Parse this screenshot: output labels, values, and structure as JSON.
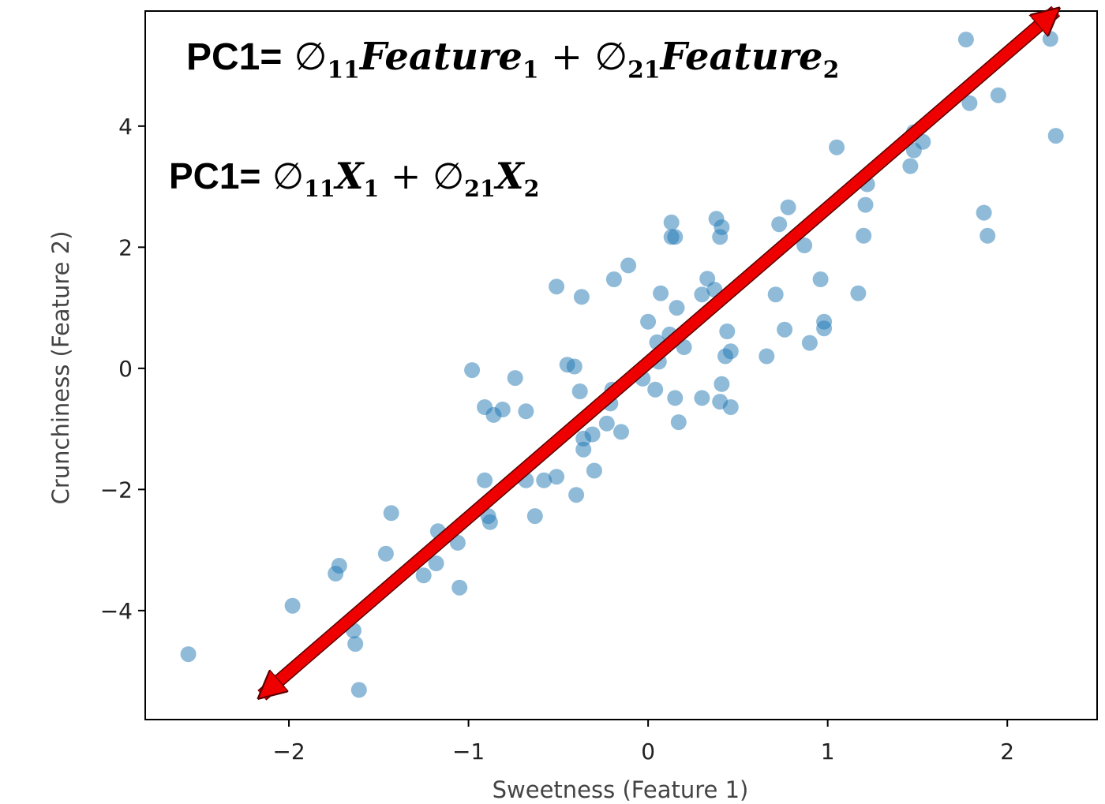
{
  "equations": {
    "eq1": {
      "lhs": "PC1=",
      "coef1_sym": "∅",
      "coef1_sub": "11",
      "var1": "Feature",
      "var1_sub": "1",
      "plus": "+",
      "coef2_sym": "∅",
      "coef2_sub": "21",
      "var2": "Feature",
      "var2_sub": "2"
    },
    "eq2": {
      "lhs": "PC1=",
      "coef1_sym": "∅",
      "coef1_sub": "11",
      "var1": "X",
      "var1_sub": "1",
      "plus": "+",
      "coef2_sym": "∅",
      "coef2_sub": "21",
      "var2": "X",
      "var2_sub": "2"
    }
  },
  "chart_data": {
    "type": "scatter",
    "xlabel": "Sweetness (Feature 1)",
    "ylabel": "Crunchiness (Feature 2)",
    "xlim": [
      -2.8,
      2.5
    ],
    "ylim": [
      -5.8,
      5.9
    ],
    "xticks": [
      -2,
      -1,
      0,
      1,
      2
    ],
    "yticks": [
      -4,
      -2,
      0,
      2,
      4
    ],
    "xtick_labels": [
      "−2",
      "−1",
      "0",
      "1",
      "2"
    ],
    "ytick_labels": [
      "−4",
      "−2",
      "0",
      "2",
      "4"
    ],
    "grid": false,
    "marker_color": "#1f77b4",
    "arrow_color": "#ee0000",
    "arrow": {
      "from": [
        -2.15,
        -5.4
      ],
      "to": [
        2.27,
        5.9
      ]
    },
    "points": [
      [
        -2.56,
        -4.72
      ],
      [
        -1.98,
        -3.92
      ],
      [
        -1.61,
        -5.31
      ],
      [
        -1.63,
        -4.55
      ],
      [
        -1.64,
        -4.33
      ],
      [
        -1.74,
        -3.39
      ],
      [
        -1.72,
        -3.26
      ],
      [
        -1.46,
        -3.06
      ],
      [
        -1.43,
        -2.39
      ],
      [
        -1.25,
        -3.42
      ],
      [
        -1.18,
        -3.22
      ],
      [
        -1.17,
        -2.69
      ],
      [
        -1.06,
        -2.88
      ],
      [
        -1.05,
        -3.62
      ],
      [
        -0.98,
        -0.03
      ],
      [
        -0.91,
        -0.64
      ],
      [
        -0.86,
        -0.77
      ],
      [
        -0.81,
        -0.68
      ],
      [
        -0.91,
        -1.85
      ],
      [
        -0.89,
        -2.44
      ],
      [
        -0.88,
        -2.54
      ],
      [
        -0.74,
        -0.16
      ],
      [
        -0.68,
        -0.71
      ],
      [
        -0.68,
        -1.85
      ],
      [
        -0.63,
        -2.44
      ],
      [
        -0.58,
        -1.85
      ],
      [
        -0.51,
        -1.79
      ],
      [
        -0.51,
        1.35
      ],
      [
        -0.45,
        0.06
      ],
      [
        -0.41,
        0.03
      ],
      [
        -0.38,
        -0.38
      ],
      [
        -0.4,
        -2.09
      ],
      [
        -0.37,
        1.18
      ],
      [
        -0.36,
        -1.16
      ],
      [
        -0.36,
        -1.34
      ],
      [
        -0.31,
        -1.09
      ],
      [
        -0.3,
        -1.69
      ],
      [
        -0.23,
        -0.91
      ],
      [
        -0.21,
        -0.58
      ],
      [
        -0.2,
        -0.35
      ],
      [
        -0.19,
        1.47
      ],
      [
        -0.15,
        -1.05
      ],
      [
        -0.11,
        1.7
      ],
      [
        -0.03,
        -0.17
      ],
      [
        0.0,
        0.77
      ],
      [
        0.04,
        -0.35
      ],
      [
        0.05,
        0.43
      ],
      [
        0.06,
        0.11
      ],
      [
        0.07,
        1.24
      ],
      [
        0.12,
        0.56
      ],
      [
        0.13,
        2.17
      ],
      [
        0.13,
        2.41
      ],
      [
        0.15,
        2.17
      ],
      [
        0.15,
        -0.49
      ],
      [
        0.16,
        1.0
      ],
      [
        0.17,
        -0.89
      ],
      [
        0.2,
        0.35
      ],
      [
        0.3,
        -0.49
      ],
      [
        0.3,
        1.22
      ],
      [
        0.33,
        1.48
      ],
      [
        0.37,
        1.3
      ],
      [
        0.38,
        2.47
      ],
      [
        0.4,
        2.17
      ],
      [
        0.41,
        2.33
      ],
      [
        0.4,
        -0.55
      ],
      [
        0.41,
        -0.26
      ],
      [
        0.43,
        0.2
      ],
      [
        0.44,
        0.61
      ],
      [
        0.46,
        0.28
      ],
      [
        0.46,
        -0.64
      ],
      [
        0.66,
        0.2
      ],
      [
        0.71,
        1.22
      ],
      [
        0.73,
        2.38
      ],
      [
        0.76,
        0.64
      ],
      [
        0.78,
        2.66
      ],
      [
        0.87,
        2.03
      ],
      [
        0.9,
        0.42
      ],
      [
        0.96,
        1.47
      ],
      [
        0.98,
        0.66
      ],
      [
        0.98,
        0.77
      ],
      [
        1.05,
        3.65
      ],
      [
        1.17,
        1.24
      ],
      [
        1.2,
        2.19
      ],
      [
        1.21,
        2.7
      ],
      [
        1.22,
        3.04
      ],
      [
        1.46,
        3.34
      ],
      [
        1.48,
        3.6
      ],
      [
        1.48,
        3.9
      ],
      [
        1.53,
        3.74
      ],
      [
        1.77,
        5.43
      ],
      [
        1.79,
        4.38
      ],
      [
        1.87,
        2.57
      ],
      [
        1.89,
        2.19
      ],
      [
        1.95,
        4.51
      ],
      [
        2.24,
        5.44
      ],
      [
        2.27,
        3.84
      ]
    ]
  }
}
